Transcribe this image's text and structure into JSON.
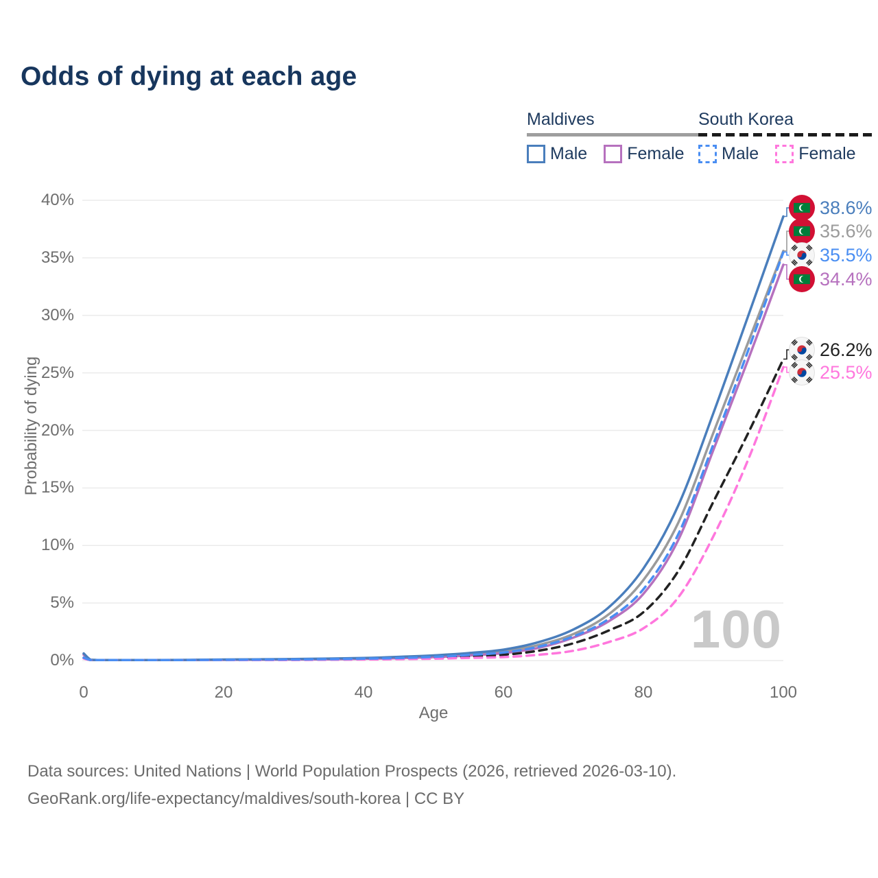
{
  "title": "Odds of dying at each age",
  "legend": {
    "groups": [
      {
        "name": "Maldives",
        "line_style": "solid",
        "underline_color": "#9e9e9e",
        "items": [
          {
            "label": "Male",
            "color": "#4a7ebc",
            "style": "solid"
          },
          {
            "label": "Female",
            "color": "#b671be",
            "style": "solid"
          }
        ]
      },
      {
        "name": "South Korea",
        "line_style": "dashed",
        "underline_color": "#1b1b1b",
        "items": [
          {
            "label": "Male",
            "color": "#4a8ef2",
            "style": "dashed"
          },
          {
            "label": "Female",
            "color": "#ff77dd",
            "style": "dashed"
          }
        ]
      }
    ]
  },
  "chart_data": {
    "type": "line",
    "title": "Odds of dying at each age",
    "xlabel": "Age",
    "ylabel": "Probability of dying",
    "xlim": [
      0,
      100
    ],
    "ylim_percent": [
      0,
      40
    ],
    "x_ticks": [
      "0",
      "20",
      "40",
      "60",
      "80",
      "100"
    ],
    "y_ticks": [
      "0%",
      "5%",
      "10%",
      "15%",
      "20%",
      "25%",
      "30%",
      "35%",
      "40%"
    ],
    "grid": "horizontal",
    "legend_position": "top-right",
    "watermark": "100",
    "x": [
      0,
      1,
      2,
      5,
      10,
      15,
      20,
      25,
      30,
      35,
      40,
      45,
      50,
      55,
      60,
      65,
      70,
      75,
      80,
      85,
      90,
      95,
      100
    ],
    "series": [
      {
        "name": "Maldives",
        "sex": "Male",
        "color": "#4a7ebc",
        "dash": "solid",
        "flag": "maldives",
        "end_label": "38.6%",
        "values": [
          0.62,
          0.07,
          0.05,
          0.04,
          0.04,
          0.06,
          0.09,
          0.11,
          0.13,
          0.17,
          0.22,
          0.32,
          0.45,
          0.65,
          0.95,
          1.6,
          2.7,
          4.6,
          8.0,
          13.5,
          21.5,
          30.0,
          38.6
        ]
      },
      {
        "name": "Maldives",
        "sex": "Both",
        "color": "#9b9b9b",
        "dash": "solid",
        "flag": "maldives",
        "end_label": "35.6%",
        "values": [
          0.57,
          0.06,
          0.05,
          0.04,
          0.04,
          0.05,
          0.08,
          0.09,
          0.11,
          0.14,
          0.19,
          0.27,
          0.38,
          0.55,
          0.8,
          1.35,
          2.3,
          4.0,
          7.0,
          12.0,
          19.8,
          27.7,
          35.6
        ]
      },
      {
        "name": "South Korea",
        "sex": "Male",
        "color": "#4a8ef2",
        "dash": "dashed",
        "flag": "south-korea",
        "end_label": "35.5%",
        "values": [
          0.25,
          0.03,
          0.02,
          0.02,
          0.02,
          0.04,
          0.06,
          0.08,
          0.09,
          0.12,
          0.16,
          0.22,
          0.32,
          0.48,
          0.7,
          1.2,
          2.1,
          3.6,
          6.2,
          11.0,
          18.8,
          27.0,
          35.5
        ]
      },
      {
        "name": "Maldives",
        "sex": "Female",
        "color": "#b671be",
        "dash": "solid",
        "flag": "maldives",
        "end_label": "34.4%",
        "values": [
          0.5,
          0.05,
          0.04,
          0.03,
          0.03,
          0.04,
          0.06,
          0.07,
          0.09,
          0.11,
          0.15,
          0.21,
          0.3,
          0.44,
          0.65,
          1.1,
          2.0,
          3.4,
          5.8,
          10.5,
          18.3,
          26.2,
          34.4
        ]
      },
      {
        "name": "South Korea",
        "sex": "Both",
        "color": "#222222",
        "dash": "dashed",
        "flag": "south-korea",
        "end_label": "26.2%",
        "values": [
          0.22,
          0.02,
          0.02,
          0.01,
          0.02,
          0.03,
          0.04,
          0.05,
          0.07,
          0.09,
          0.12,
          0.16,
          0.23,
          0.35,
          0.5,
          0.85,
          1.5,
          2.6,
          4.2,
          7.8,
          13.8,
          19.8,
          26.2
        ]
      },
      {
        "name": "South Korea",
        "sex": "Female",
        "color": "#ff77dd",
        "dash": "dashed",
        "flag": "south-korea",
        "end_label": "25.5%",
        "values": [
          0.18,
          0.02,
          0.01,
          0.01,
          0.01,
          0.02,
          0.03,
          0.04,
          0.05,
          0.07,
          0.09,
          0.12,
          0.16,
          0.23,
          0.3,
          0.5,
          0.85,
          1.6,
          2.8,
          5.5,
          10.8,
          17.5,
          25.5
        ]
      }
    ]
  },
  "footer": {
    "line1": "Data sources: United Nations | World Population Prospects (2026, retrieved 2026-03-10).",
    "line2": "GeoRank.org/life-expectancy/maldives/south-korea | CC BY"
  }
}
